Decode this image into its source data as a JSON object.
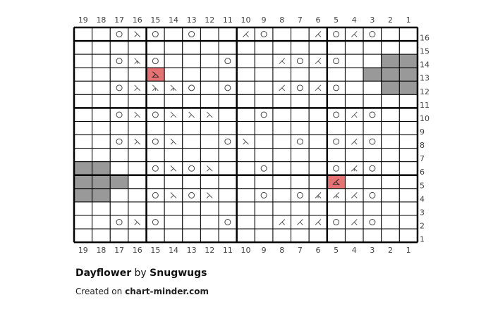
{
  "chart_data": {
    "type": "table",
    "kind": "knitting chart",
    "columns": [
      19,
      18,
      17,
      16,
      15,
      14,
      13,
      12,
      11,
      10,
      9,
      8,
      7,
      6,
      5,
      4,
      3,
      2,
      1
    ],
    "rows_top_to_bottom": [
      16,
      15,
      14,
      13,
      12,
      11,
      10,
      9,
      8,
      7,
      6,
      5,
      4,
      3,
      2,
      1
    ],
    "symbol_legend": {
      "O": "yarn over circle",
      "L": "left-leaning decrease",
      "R": "right-leaning decrease",
      "L3": "left-leaning double decrease",
      "R3": "right-leaning double decrease",
      "TL": "red highlighted left decrease",
      "TR": "red highlighted right decrease",
      "G": "no stitch (gray)",
      ".": "empty"
    },
    "colors": {
      "no_stitch": "#999999",
      "highlight": "#e57373",
      "grid": "#000000"
    },
    "cells": [
      [
        ".",
        ".",
        "O",
        "L",
        "O",
        ".",
        "O",
        ".",
        ".",
        "R",
        "O",
        ".",
        ".",
        "R",
        "O",
        "R",
        "O",
        ".",
        "."
      ],
      [
        ".",
        ".",
        ".",
        ".",
        ".",
        ".",
        ".",
        ".",
        ".",
        ".",
        ".",
        ".",
        ".",
        ".",
        ".",
        ".",
        ".",
        ".",
        "."
      ],
      [
        ".",
        ".",
        "O",
        "L3",
        "O",
        ".",
        ".",
        ".",
        "O",
        ".",
        ".",
        "R",
        "O",
        "R",
        "O",
        ".",
        ".",
        "G",
        "G"
      ],
      [
        ".",
        ".",
        ".",
        ".",
        "TL",
        ".",
        ".",
        ".",
        ".",
        ".",
        ".",
        ".",
        ".",
        ".",
        ".",
        ".",
        "G",
        "G",
        "G"
      ],
      [
        ".",
        ".",
        "O",
        "L",
        "L3",
        "L3",
        "O",
        ".",
        "O",
        ".",
        ".",
        "R",
        "O",
        "R",
        "O",
        ".",
        ".",
        "G",
        "G"
      ],
      [
        ".",
        ".",
        ".",
        ".",
        ".",
        ".",
        ".",
        ".",
        ".",
        ".",
        ".",
        ".",
        ".",
        ".",
        ".",
        ".",
        ".",
        ".",
        "."
      ],
      [
        ".",
        ".",
        "O",
        "L",
        "O",
        "L",
        "L",
        "L",
        ".",
        ".",
        "O",
        ".",
        ".",
        ".",
        "O",
        "R",
        "O",
        ".",
        "."
      ],
      [
        ".",
        ".",
        ".",
        ".",
        ".",
        ".",
        ".",
        ".",
        ".",
        ".",
        ".",
        ".",
        ".",
        ".",
        ".",
        ".",
        ".",
        ".",
        "."
      ],
      [
        ".",
        ".",
        "O",
        "L",
        "O",
        "L",
        ".",
        ".",
        "O",
        "L",
        ".",
        ".",
        "O",
        ".",
        "O",
        "R",
        "O",
        ".",
        "."
      ],
      [
        ".",
        ".",
        ".",
        ".",
        ".",
        ".",
        ".",
        ".",
        ".",
        ".",
        ".",
        ".",
        ".",
        ".",
        ".",
        ".",
        ".",
        ".",
        "."
      ],
      [
        "G",
        "G",
        ".",
        ".",
        "O",
        "L",
        "O",
        "L",
        ".",
        ".",
        "O",
        ".",
        ".",
        ".",
        "O",
        "R3",
        "O",
        ".",
        "."
      ],
      [
        "G",
        "G",
        "G",
        ".",
        ".",
        ".",
        ".",
        ".",
        ".",
        ".",
        ".",
        ".",
        ".",
        ".",
        "TR",
        ".",
        ".",
        ".",
        "."
      ],
      [
        "G",
        "G",
        ".",
        ".",
        "O",
        "L",
        "O",
        "L",
        ".",
        ".",
        "O",
        ".",
        "O",
        "R3",
        "R3",
        "R",
        "O",
        ".",
        "."
      ],
      [
        ".",
        ".",
        ".",
        ".",
        ".",
        ".",
        ".",
        ".",
        ".",
        ".",
        ".",
        ".",
        ".",
        ".",
        ".",
        ".",
        ".",
        ".",
        "."
      ],
      [
        ".",
        ".",
        "O",
        "L",
        "O",
        ".",
        ".",
        ".",
        "O",
        ".",
        ".",
        "R",
        "R",
        "R",
        "O",
        "R",
        "O",
        ".",
        "."
      ],
      [
        ".",
        ".",
        ".",
        ".",
        ".",
        ".",
        ".",
        ".",
        ".",
        ".",
        ".",
        ".",
        ".",
        ".",
        ".",
        ".",
        ".",
        ".",
        "."
      ]
    ]
  },
  "footer": {
    "title": "Dayflower",
    "by": "by",
    "author": "Snugwugs",
    "created_on": "Created on",
    "site": "chart-minder.com"
  }
}
